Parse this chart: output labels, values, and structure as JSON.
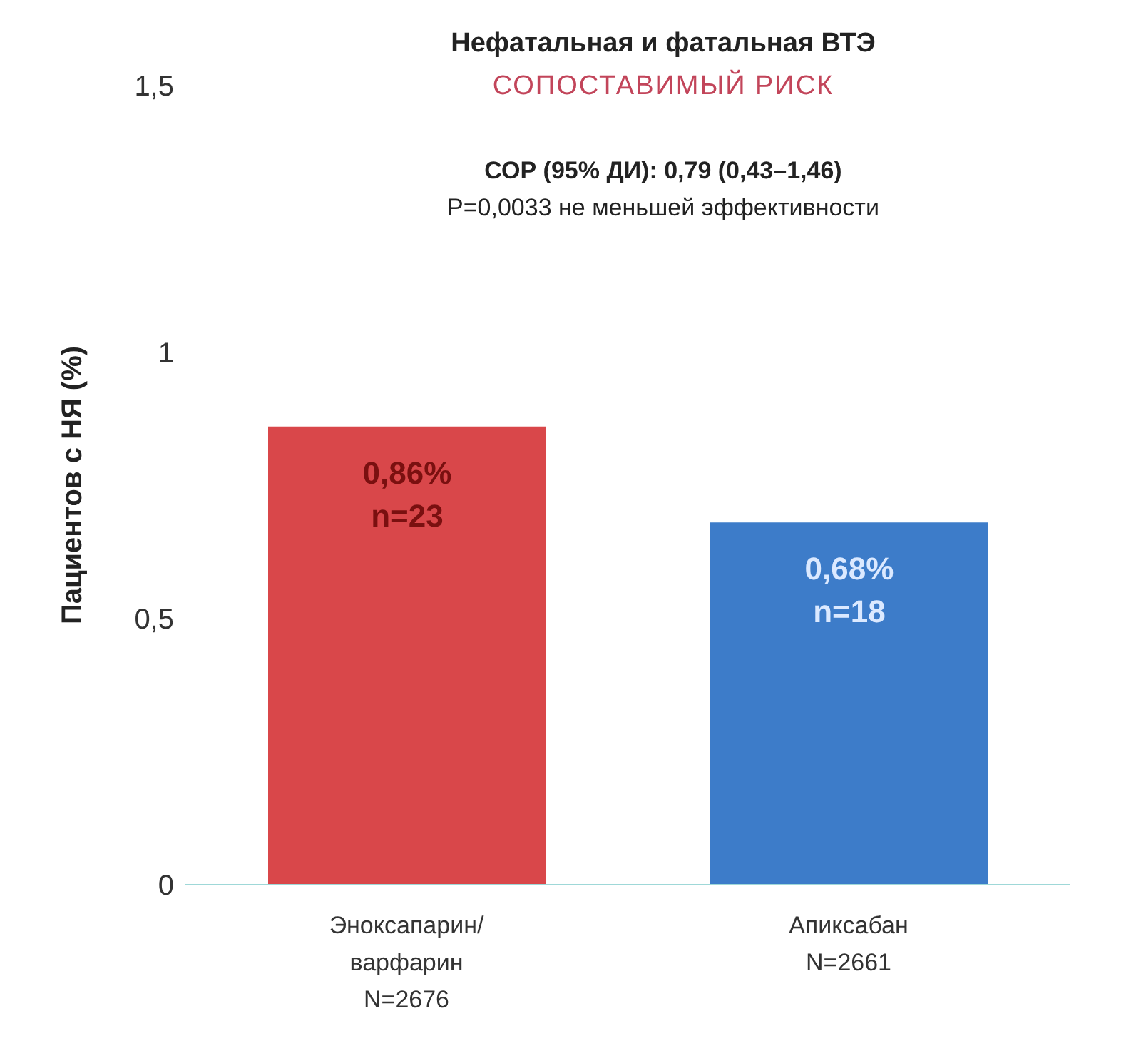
{
  "chart_data": {
    "type": "bar",
    "title": "Нефатальная и фатальная ВТЭ",
    "subtitle": "СОПОСТАВИМЫЙ РИСК",
    "annotations": [
      "СОР (95% ДИ): 0,79 (0,43–1,46)",
      "P=0,0033 не меньшей эффективности"
    ],
    "ylabel": "Пациентов с НЯ (%)",
    "categories": [
      "Эноксапарин/\nварфарин\nN=2676",
      "Апиксабан\nN=2661"
    ],
    "values": [
      0.86,
      0.68
    ],
    "colors": [
      "#d9474a",
      "#3d7cc9"
    ],
    "value_labels": [
      "0,86%\nn=23",
      "0,68%\nn=18"
    ],
    "ylim": [
      0,
      1.5
    ],
    "yticks": [
      0,
      {
        "value": 0.5,
        "label": "0,5"
      },
      1,
      {
        "value": 1.5,
        "label": "1,5"
      }
    ]
  }
}
